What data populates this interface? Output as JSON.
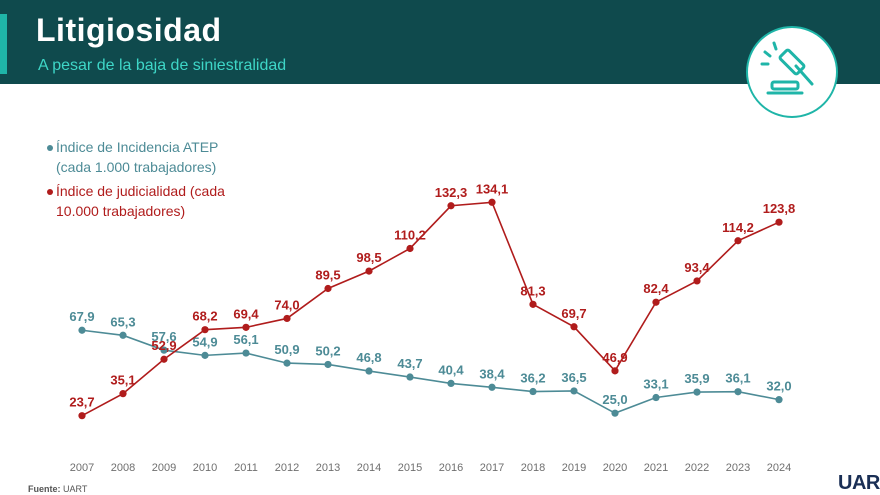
{
  "header": {
    "title": "Litigiosidad",
    "subtitle": "A pesar de la baja de siniestralidad",
    "logo_icon": "gavel-icon"
  },
  "footer": {
    "source_label": "Fuente:",
    "source_value": "UART",
    "brand": "UART"
  },
  "colors": {
    "header_bg": "#0f4a4d",
    "accent": "#1fb5a8",
    "series_atep": "#4d8b96",
    "series_judicial": "#b01c1c"
  },
  "chart_data": {
    "type": "line",
    "x": [
      "2007",
      "2008",
      "2009",
      "2010",
      "2011",
      "2012",
      "2013",
      "2014",
      "2015",
      "2016",
      "2017",
      "2018",
      "2019",
      "2020",
      "2021",
      "2022",
      "2023",
      "2024"
    ],
    "ylim": [
      0,
      150
    ],
    "grid": false,
    "legend_position": "top-left",
    "series": [
      {
        "name": "Índice de Incidencia ATEP\n(cada 1.000 trabajadores)",
        "color": "#4d8b96",
        "values": [
          67.9,
          65.3,
          57.6,
          54.9,
          56.1,
          50.9,
          50.2,
          46.8,
          43.7,
          40.4,
          38.4,
          36.2,
          36.5,
          25.0,
          33.1,
          35.9,
          36.1,
          32.0
        ],
        "labels": [
          "67,9",
          "65,3",
          "57,6",
          "54,9",
          "56,1",
          "50,9",
          "50,2",
          "46,8",
          "43,7",
          "40,4",
          "38,4",
          "36,2",
          "36,5",
          "25,0",
          "33,1",
          "35,9",
          "36,1",
          "32,0"
        ]
      },
      {
        "name": "Índice de judicialidad (cada\n10.000 trabajadores)",
        "color": "#b01c1c",
        "values": [
          23.7,
          35.1,
          52.9,
          68.2,
          69.4,
          74.0,
          89.5,
          98.5,
          110.2,
          132.3,
          134.1,
          81.3,
          69.7,
          46.9,
          82.4,
          93.4,
          114.2,
          123.8
        ],
        "labels": [
          "23,7",
          "35,1",
          "52,9",
          "68,2",
          "69,4",
          "74,0",
          "89,5",
          "98,5",
          "110,2",
          "132,3",
          "134,1",
          "81,3",
          "69,7",
          "46,9",
          "82,4",
          "93,4",
          "114,2",
          "123,8"
        ]
      }
    ]
  }
}
